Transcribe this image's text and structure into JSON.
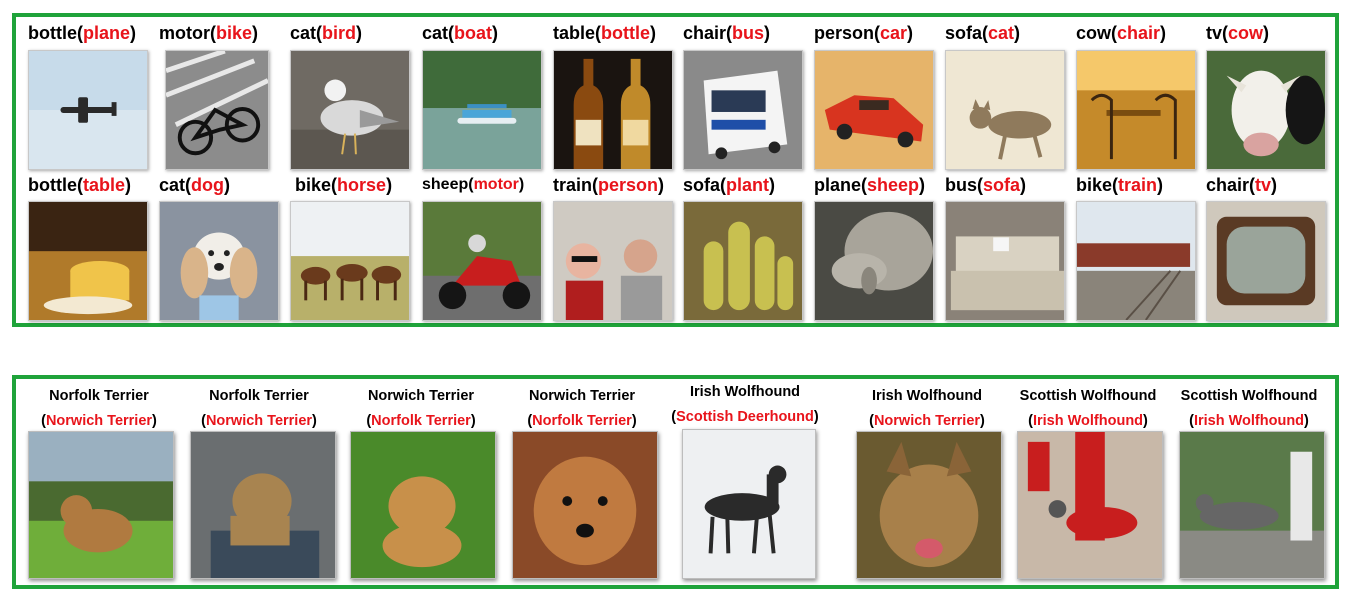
{
  "top_panel": {
    "row1": [
      {
        "label": "bottle",
        "pred": "plane"
      },
      {
        "label": "motor",
        "pred": "bike"
      },
      {
        "label": "cat",
        "pred": "bird"
      },
      {
        "label": "cat",
        "pred": "boat"
      },
      {
        "label": "table",
        "pred": "bottle"
      },
      {
        "label": "chair",
        "pred": "bus"
      },
      {
        "label": "person",
        "pred": "car"
      },
      {
        "label": "sofa",
        "pred": "cat"
      },
      {
        "label": "cow",
        "pred": "chair"
      },
      {
        "label": "tv",
        "pred": "cow"
      }
    ],
    "row2": [
      {
        "label": "bottle",
        "pred": "table"
      },
      {
        "label": "cat",
        "pred": "dog"
      },
      {
        "label": "bike",
        "pred": "horse"
      },
      {
        "label": "sheep",
        "pred": "motor"
      },
      {
        "label": "train",
        "pred": "person"
      },
      {
        "label": "sofa",
        "pred": "plant"
      },
      {
        "label": "plane",
        "pred": "sheep"
      },
      {
        "label": "bus",
        "pred": "sofa"
      },
      {
        "label": "bike",
        "pred": "train"
      },
      {
        "label": "chair",
        "pred": "tv"
      }
    ]
  },
  "bottom_panel": {
    "items": [
      {
        "label": "Norfolk Terrier",
        "pred": "Norwich Terrier"
      },
      {
        "label": "Norfolk Terrier",
        "pred": "Norwich Terrier"
      },
      {
        "label": "Norwich Terrier",
        "pred": "Norfolk Terrier"
      },
      {
        "label": "Norwich Terrier",
        "pred": "Norfolk Terrier"
      },
      {
        "label": "Irish Wolfhound",
        "pred": "Scottish Deerhound"
      },
      {
        "label": "Irish Wolfhound",
        "pred": "Norwich Terrier"
      },
      {
        "label": "Scottish Wolfhound",
        "pred": "Irish Wolfhound"
      },
      {
        "label": "Scottish Wolfhound",
        "pred": "Irish Wolfhound"
      }
    ]
  },
  "punct": {
    "open": "(",
    "close": ")"
  },
  "colors": {
    "frame": "#1fa33a",
    "highlight": "#e8141b"
  }
}
